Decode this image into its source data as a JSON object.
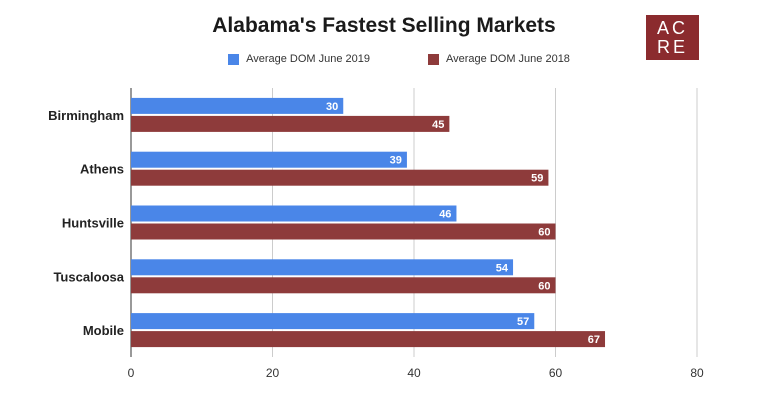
{
  "logo": {
    "line1": "AC",
    "line2": "RE"
  },
  "chart_data": {
    "type": "bar",
    "orientation": "horizontal",
    "title": "Alabama's Fastest Selling Markets",
    "categories": [
      "Birmingham",
      "Athens",
      "Huntsville",
      "Tuscaloosa",
      "Mobile"
    ],
    "series": [
      {
        "name": "Average DOM June 2019",
        "color": "#4a86e8",
        "values": [
          30,
          39,
          46,
          54,
          57
        ]
      },
      {
        "name": "Average DOM June 2018",
        "color": "#8e3b3b",
        "values": [
          45,
          59,
          60,
          60,
          67
        ]
      }
    ],
    "xlim": [
      0,
      80
    ],
    "xticks": [
      0,
      20,
      40,
      60,
      80
    ],
    "grid": true,
    "legend": "top"
  }
}
